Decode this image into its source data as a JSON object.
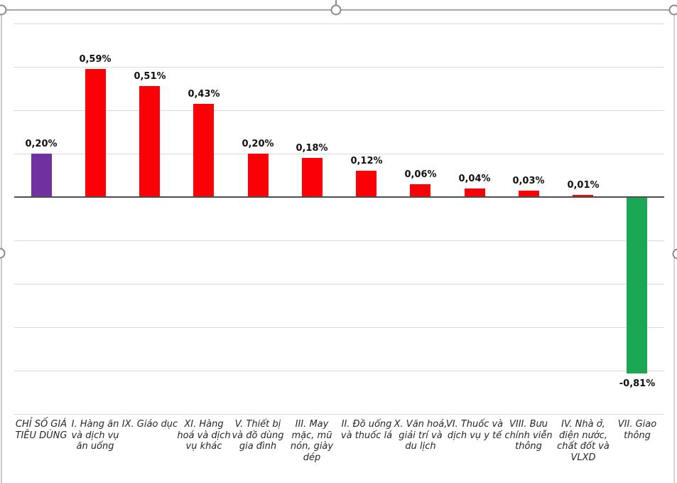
{
  "chart_data": {
    "type": "bar",
    "title": "",
    "xlabel": "",
    "ylabel": "",
    "categories": [
      "CHỈ SỐ GIÁ TIÊU DÙNG",
      "I. Hàng ăn và dịch vụ ăn uống",
      "IX. Giáo dục",
      "XI. Hàng hoá và dịch vụ khác",
      "V. Thiết bị và đồ dùng gia đình",
      "III. May mặc, mũ nón, giày dép",
      "II. Đồ uống và thuốc lá",
      "X. Văn hoá, giải trí và du lịch",
      "VI. Thuốc và dịch vụ y tế",
      "VIII. Bưu chính viễn thông",
      "IV. Nhà ở, điện nước, chất đốt và VLXD",
      "VII. Giao thông"
    ],
    "values": [
      0.2,
      0.59,
      0.51,
      0.43,
      0.2,
      0.18,
      0.12,
      0.06,
      0.04,
      0.03,
      0.01,
      -0.81
    ],
    "value_labels": [
      "0,20%",
      "0,59%",
      "0,51%",
      "0,43%",
      "0,20%",
      "0,18%",
      "0,12%",
      "0,06%",
      "0,04%",
      "0,03%",
      "0,01%",
      "-0,81%"
    ],
    "bar_colors": [
      "#7030A0",
      "#FB0007",
      "#FB0007",
      "#FB0007",
      "#FB0007",
      "#FB0007",
      "#FB0007",
      "#FB0007",
      "#FB0007",
      "#FB0007",
      "#FB0007",
      "#1AA855"
    ],
    "ylim": [
      -1.0,
      0.8
    ],
    "gridline_step": 0.2,
    "grid": true,
    "legend": "none",
    "y_axis_tick_labels_visible": false
  },
  "colors": {
    "gridline": "#d9d9d9",
    "axis_line": "#4d4d4d",
    "selection_border": "#a6a6a6",
    "handle_stroke": "#8a8a8a",
    "value_label": "#111111",
    "category_label": "#262626",
    "background": "#ffffff"
  },
  "selection": {
    "handles": [
      "top-left",
      "top-center",
      "top-right",
      "middle-left",
      "middle-right"
    ]
  }
}
